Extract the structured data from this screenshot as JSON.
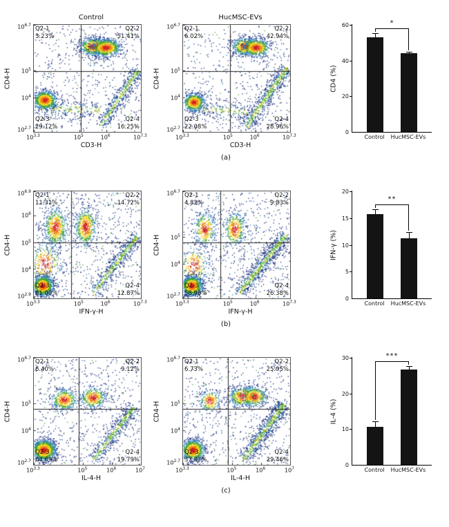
{
  "colors": {
    "background": "#ffffff",
    "bar_fill": "#141414",
    "density_scale": {
      "blue": "#16297c",
      "cyan": "#2f7fbf",
      "green": "#3da233",
      "yellow": "#f2d41c",
      "orange": "#f0851a",
      "red": "#d3201f"
    }
  },
  "rows": [
    {
      "id": "a",
      "caption": "(a)",
      "plots": [
        {
          "title": "Control",
          "xlabel": "CD3-H",
          "ylabel": "CD4-H",
          "xticks": [
            {
              "exp": "3.3",
              "pos": 0
            },
            {
              "exp": "5",
              "pos": 0.425
            },
            {
              "exp": "6",
              "pos": 0.675
            },
            {
              "exp": "7.3",
              "pos": 1
            }
          ],
          "yticks": [
            {
              "exp": "2.7",
              "pos": 0
            },
            {
              "exp": "4",
              "pos": 0.325
            },
            {
              "exp": "5",
              "pos": 0.575
            },
            {
              "exp": "6.7",
              "pos": 1
            }
          ],
          "quad": {
            "x": 0.44,
            "y": 0.57
          },
          "quadrants": [
            {
              "name": "Q2-1",
              "pct": "3.23%"
            },
            {
              "name": "Q2-2",
              "pct": "51.41%"
            },
            {
              "name": "Q2-3",
              "pct": "29.12%"
            },
            {
              "name": "Q2-4",
              "pct": "16.25%"
            }
          ],
          "seed": 11,
          "clusters": [
            {
              "t": "n",
              "n": 520
            },
            {
              "t": "b",
              "x1": 0.04,
              "y1": 0.24,
              "x2": 0.62,
              "y2": 0.2,
              "w": 0.05,
              "n": 240
            },
            {
              "t": "b",
              "x1": 0.62,
              "y1": 0.06,
              "x2": 0.97,
              "y2": 0.58,
              "w": 0.035,
              "n": 520
            },
            {
              "t": "g",
              "x": 0.56,
              "y": 0.8,
              "sx": 0.07,
              "sy": 0.042,
              "n": 800
            },
            {
              "t": "g",
              "x": 0.67,
              "y": 0.79,
              "sx": 0.07,
              "sy": 0.042,
              "n": 800
            },
            {
              "t": "g",
              "x": 0.1,
              "y": 0.3,
              "sx": 0.055,
              "sy": 0.045,
              "n": 950
            }
          ]
        },
        {
          "title": "HucMSC-EVs",
          "xlabel": "CD3-H",
          "ylabel": "CD4-H",
          "xticks": [
            {
              "exp": "3.3",
              "pos": 0
            },
            {
              "exp": "5",
              "pos": 0.425
            },
            {
              "exp": "6",
              "pos": 0.675
            },
            {
              "exp": "7.3",
              "pos": 1
            }
          ],
          "yticks": [
            {
              "exp": "2.7",
              "pos": 0
            },
            {
              "exp": "4",
              "pos": 0.325
            },
            {
              "exp": "5",
              "pos": 0.575
            },
            {
              "exp": "6.7",
              "pos": 1
            }
          ],
          "quad": {
            "x": 0.44,
            "y": 0.57
          },
          "quadrants": [
            {
              "name": "Q2-1",
              "pct": "6.02%"
            },
            {
              "name": "Q2-2",
              "pct": "42.94%"
            },
            {
              "name": "Q2-3",
              "pct": "22.08%"
            },
            {
              "name": "Q2-4",
              "pct": "28.96%"
            }
          ],
          "seed": 22,
          "clusters": [
            {
              "t": "n",
              "n": 520
            },
            {
              "t": "b",
              "x1": 0.04,
              "y1": 0.23,
              "x2": 0.6,
              "y2": 0.19,
              "w": 0.05,
              "n": 220
            },
            {
              "t": "b",
              "x1": 0.58,
              "y1": 0.05,
              "x2": 0.97,
              "y2": 0.6,
              "w": 0.04,
              "n": 700
            },
            {
              "t": "g",
              "x": 0.58,
              "y": 0.8,
              "sx": 0.065,
              "sy": 0.042,
              "n": 650
            },
            {
              "t": "g",
              "x": 0.68,
              "y": 0.79,
              "sx": 0.065,
              "sy": 0.042,
              "n": 650
            },
            {
              "t": "g",
              "x": 0.1,
              "y": 0.28,
              "sx": 0.05,
              "sy": 0.042,
              "n": 700
            }
          ]
        }
      ],
      "bar": {
        "ylabel": "CD4 (%)",
        "ylim": [
          0,
          60
        ],
        "yticks": [
          0,
          20,
          40,
          60
        ],
        "categories": [
          "Control",
          "HucMSC-EVs"
        ],
        "values": [
          53,
          44
        ],
        "errors": [
          2.5,
          0.8
        ],
        "significance": "*"
      }
    },
    {
      "id": "b",
      "caption": "(b)",
      "plots": [
        {
          "title": "",
          "xlabel": "IFN-γ-H",
          "ylabel": "CD4-H",
          "xticks": [
            {
              "exp": "3.3",
              "pos": 0
            },
            {
              "exp": "5",
              "pos": 0.425
            },
            {
              "exp": "6",
              "pos": 0.675
            },
            {
              "exp": "7.3",
              "pos": 1
            }
          ],
          "yticks": [
            {
              "exp": "2.9",
              "pos": 0
            },
            {
              "exp": "4",
              "pos": 0.275
            },
            {
              "exp": "5",
              "pos": 0.525
            },
            {
              "exp": "6",
              "pos": 0.775
            },
            {
              "exp": "6.9",
              "pos": 1
            }
          ],
          "quad": {
            "x": 0.35,
            "y": 0.52
          },
          "quadrants": [
            {
              "name": "Q2-1",
              "pct": "11.31%"
            },
            {
              "name": "Q2-2",
              "pct": "14.72%"
            },
            {
              "name": "Q2-3",
              "pct": "61.09%"
            },
            {
              "name": "Q2-4",
              "pct": "12.87%"
            }
          ],
          "seed": 33,
          "clusters": [
            {
              "t": "n",
              "n": 680
            },
            {
              "t": "b",
              "x1": 0.55,
              "y1": 0.05,
              "x2": 0.96,
              "y2": 0.58,
              "w": 0.035,
              "n": 580
            },
            {
              "t": "g",
              "x": 0.1,
              "y": 0.33,
              "sx": 0.08,
              "sy": 0.1,
              "n": 330
            },
            {
              "t": "g",
              "x": 0.2,
              "y": 0.67,
              "sx": 0.055,
              "sy": 0.09,
              "n": 620
            },
            {
              "t": "g",
              "x": 0.48,
              "y": 0.67,
              "sx": 0.05,
              "sy": 0.09,
              "n": 580
            },
            {
              "t": "g",
              "x": 0.08,
              "y": 0.12,
              "sx": 0.05,
              "sy": 0.048,
              "n": 1200
            }
          ]
        },
        {
          "title": "",
          "xlabel": "IFN-γ-H",
          "ylabel": "CD4-H",
          "xticks": [
            {
              "exp": "3.3",
              "pos": 0
            },
            {
              "exp": "5",
              "pos": 0.425
            },
            {
              "exp": "6",
              "pos": 0.675
            },
            {
              "exp": "7.3",
              "pos": 1
            }
          ],
          "yticks": [
            {
              "exp": "2.7",
              "pos": 0
            },
            {
              "exp": "4",
              "pos": 0.325
            },
            {
              "exp": "5",
              "pos": 0.575
            },
            {
              "exp": "6.7",
              "pos": 1
            }
          ],
          "quad": {
            "x": 0.35,
            "y": 0.52
          },
          "quadrants": [
            {
              "name": "Q2-1",
              "pct": "4.82%"
            },
            {
              "name": "Q2-2",
              "pct": "9.83%"
            },
            {
              "name": "Q2-3",
              "pct": "58.98%"
            },
            {
              "name": "Q2-4",
              "pct": "26.38%"
            }
          ],
          "seed": 44,
          "clusters": [
            {
              "t": "n",
              "n": 680
            },
            {
              "t": "b",
              "x1": 0.52,
              "y1": 0.05,
              "x2": 0.96,
              "y2": 0.6,
              "w": 0.04,
              "n": 820
            },
            {
              "t": "g",
              "x": 0.1,
              "y": 0.31,
              "sx": 0.07,
              "sy": 0.09,
              "n": 250
            },
            {
              "t": "g",
              "x": 0.2,
              "y": 0.65,
              "sx": 0.05,
              "sy": 0.08,
              "n": 360
            },
            {
              "t": "g",
              "x": 0.48,
              "y": 0.65,
              "sx": 0.05,
              "sy": 0.08,
              "n": 400
            },
            {
              "t": "g",
              "x": 0.08,
              "y": 0.12,
              "sx": 0.05,
              "sy": 0.048,
              "n": 1200
            }
          ]
        }
      ],
      "bar": {
        "ylabel": "IFN-γ (%)",
        "ylim": [
          0,
          20
        ],
        "yticks": [
          0,
          5,
          10,
          15,
          20
        ],
        "categories": [
          "Control",
          "HucMSC-EVs"
        ],
        "values": [
          15.7,
          11.2
        ],
        "errors": [
          1.0,
          1.2
        ],
        "significance": "**"
      }
    },
    {
      "id": "c",
      "caption": "(c)",
      "plots": [
        {
          "title": "",
          "xlabel": "IL-4-H",
          "ylabel": "CD4-H",
          "xticks": [
            {
              "exp": "3.3",
              "pos": 0
            },
            {
              "exp": "5",
              "pos": 0.46
            },
            {
              "exp": "6",
              "pos": 0.73
            },
            {
              "exp": "7",
              "pos": 1
            }
          ],
          "yticks": [
            {
              "exp": "2.7",
              "pos": 0
            },
            {
              "exp": "4",
              "pos": 0.325
            },
            {
              "exp": "5",
              "pos": 0.575
            },
            {
              "exp": "6.7",
              "pos": 1
            }
          ],
          "quad": {
            "x": 0.42,
            "y": 0.52
          },
          "quadrants": [
            {
              "name": "Q2-1",
              "pct": "6.40%"
            },
            {
              "name": "Q2-2",
              "pct": "9.12%"
            },
            {
              "name": "Q2-3",
              "pct": "64.69%"
            },
            {
              "name": "Q2-4",
              "pct": "19.79%"
            }
          ],
          "seed": 55,
          "clusters": [
            {
              "t": "n",
              "n": 640
            },
            {
              "t": "b",
              "x1": 0.55,
              "y1": 0.05,
              "x2": 0.94,
              "y2": 0.55,
              "w": 0.035,
              "n": 540
            },
            {
              "t": "g",
              "x": 0.28,
              "y": 0.61,
              "sx": 0.06,
              "sy": 0.05,
              "n": 460
            },
            {
              "t": "g",
              "x": 0.55,
              "y": 0.63,
              "sx": 0.06,
              "sy": 0.05,
              "n": 420
            },
            {
              "t": "g",
              "x": 0.09,
              "y": 0.14,
              "sx": 0.058,
              "sy": 0.05,
              "n": 1300
            }
          ]
        },
        {
          "title": "",
          "xlabel": "IL-4-H",
          "ylabel": "CD4-H",
          "xticks": [
            {
              "exp": "3.3",
              "pos": 0
            },
            {
              "exp": "5",
              "pos": 0.46
            },
            {
              "exp": "6",
              "pos": 0.73
            },
            {
              "exp": "7",
              "pos": 1
            }
          ],
          "yticks": [
            {
              "exp": "2.7",
              "pos": 0
            },
            {
              "exp": "4",
              "pos": 0.325
            },
            {
              "exp": "5",
              "pos": 0.575
            },
            {
              "exp": "6.7",
              "pos": 1
            }
          ],
          "quad": {
            "x": 0.42,
            "y": 0.52
          },
          "quadrants": [
            {
              "name": "Q2-1",
              "pct": "6.73%"
            },
            {
              "name": "Q2-2",
              "pct": "25.95%"
            },
            {
              "name": "Q2-3",
              "pct": "37.87%"
            },
            {
              "name": "Q2-4",
              "pct": "29.46%"
            }
          ],
          "seed": 66,
          "clusters": [
            {
              "t": "n",
              "n": 640
            },
            {
              "t": "b",
              "x1": 0.56,
              "y1": 0.05,
              "x2": 0.94,
              "y2": 0.57,
              "w": 0.04,
              "n": 780
            },
            {
              "t": "g",
              "x": 0.25,
              "y": 0.6,
              "sx": 0.05,
              "sy": 0.05,
              "n": 250
            },
            {
              "t": "g",
              "x": 0.56,
              "y": 0.64,
              "sx": 0.07,
              "sy": 0.048,
              "n": 520
            },
            {
              "t": "g",
              "x": 0.66,
              "y": 0.64,
              "sx": 0.06,
              "sy": 0.048,
              "n": 430
            },
            {
              "t": "g",
              "x": 0.09,
              "y": 0.14,
              "sx": 0.055,
              "sy": 0.05,
              "n": 1000
            }
          ]
        }
      ],
      "bar": {
        "ylabel": "IL-4 (%)",
        "ylim": [
          0,
          30
        ],
        "yticks": [
          0,
          10,
          20,
          30
        ],
        "categories": [
          "Control",
          "HucMSC-EVs"
        ],
        "values": [
          10.7,
          26.8
        ],
        "errors": [
          1.5,
          0.8
        ],
        "significance": "***"
      }
    }
  ],
  "chart_data": [
    {
      "type": "scatter",
      "subtype": "flow-cytometry-density",
      "panel": "a",
      "sample": "Control",
      "xlabel": "CD3-H",
      "ylabel": "CD4-H",
      "x_range": [
        "10^3.3",
        "10^7.3"
      ],
      "y_range": [
        "10^2.7",
        "10^6.7"
      ],
      "quadrant_percentages": {
        "Q2-1": 3.23,
        "Q2-2": 51.41,
        "Q2-3": 29.12,
        "Q2-4": 16.25
      }
    },
    {
      "type": "scatter",
      "subtype": "flow-cytometry-density",
      "panel": "a",
      "sample": "HucMSC-EVs",
      "xlabel": "CD3-H",
      "ylabel": "CD4-H",
      "x_range": [
        "10^3.3",
        "10^7.3"
      ],
      "y_range": [
        "10^2.7",
        "10^6.7"
      ],
      "quadrant_percentages": {
        "Q2-1": 6.02,
        "Q2-2": 42.94,
        "Q2-3": 22.08,
        "Q2-4": 28.96
      }
    },
    {
      "type": "bar",
      "panel": "a",
      "ylabel": "CD4 (%)",
      "categories": [
        "Control",
        "HucMSC-EVs"
      ],
      "values": [
        53,
        44
      ],
      "errors": [
        2.5,
        0.8
      ],
      "ylim": [
        0,
        60
      ],
      "yticks": [
        0,
        20,
        40,
        60
      ],
      "significance": "*"
    },
    {
      "type": "scatter",
      "subtype": "flow-cytometry-density",
      "panel": "b",
      "sample": "Control",
      "xlabel": "IFN-γ-H",
      "ylabel": "CD4-H",
      "x_range": [
        "10^3.3",
        "10^7.3"
      ],
      "y_range": [
        "10^2.9",
        "10^6.9"
      ],
      "quadrant_percentages": {
        "Q2-1": 11.31,
        "Q2-2": 14.72,
        "Q2-3": 61.09,
        "Q2-4": 12.87
      }
    },
    {
      "type": "scatter",
      "subtype": "flow-cytometry-density",
      "panel": "b",
      "sample": "HucMSC-EVs",
      "xlabel": "IFN-γ-H",
      "ylabel": "CD4-H",
      "x_range": [
        "10^3.3",
        "10^7.3"
      ],
      "y_range": [
        "10^2.7",
        "10^6.7"
      ],
      "quadrant_percentages": {
        "Q2-1": 4.82,
        "Q2-2": 9.83,
        "Q2-3": 58.98,
        "Q2-4": 26.38
      }
    },
    {
      "type": "bar",
      "panel": "b",
      "ylabel": "IFN-γ (%)",
      "categories": [
        "Control",
        "HucMSC-EVs"
      ],
      "values": [
        15.7,
        11.2
      ],
      "errors": [
        1.0,
        1.2
      ],
      "ylim": [
        0,
        20
      ],
      "yticks": [
        0,
        5,
        10,
        15,
        20
      ],
      "significance": "**"
    },
    {
      "type": "scatter",
      "subtype": "flow-cytometry-density",
      "panel": "c",
      "sample": "Control",
      "xlabel": "IL-4-H",
      "ylabel": "CD4-H",
      "x_range": [
        "10^3.3",
        "10^7"
      ],
      "y_range": [
        "10^2.7",
        "10^6.7"
      ],
      "quadrant_percentages": {
        "Q2-1": 6.4,
        "Q2-2": 9.12,
        "Q2-3": 64.69,
        "Q2-4": 19.79
      }
    },
    {
      "type": "scatter",
      "subtype": "flow-cytometry-density",
      "panel": "c",
      "sample": "HucMSC-EVs",
      "xlabel": "IL-4-H",
      "ylabel": "CD4-H",
      "x_range": [
        "10^3.3",
        "10^7"
      ],
      "y_range": [
        "10^2.7",
        "10^6.7"
      ],
      "quadrant_percentages": {
        "Q2-1": 6.73,
        "Q2-2": 25.95,
        "Q2-3": 37.87,
        "Q2-4": 29.46
      }
    },
    {
      "type": "bar",
      "panel": "c",
      "ylabel": "IL-4 (%)",
      "categories": [
        "Control",
        "HucMSC-EVs"
      ],
      "values": [
        10.7,
        26.8
      ],
      "errors": [
        1.5,
        0.8
      ],
      "ylim": [
        0,
        30
      ],
      "yticks": [
        0,
        10,
        20,
        30
      ],
      "significance": "***"
    }
  ]
}
